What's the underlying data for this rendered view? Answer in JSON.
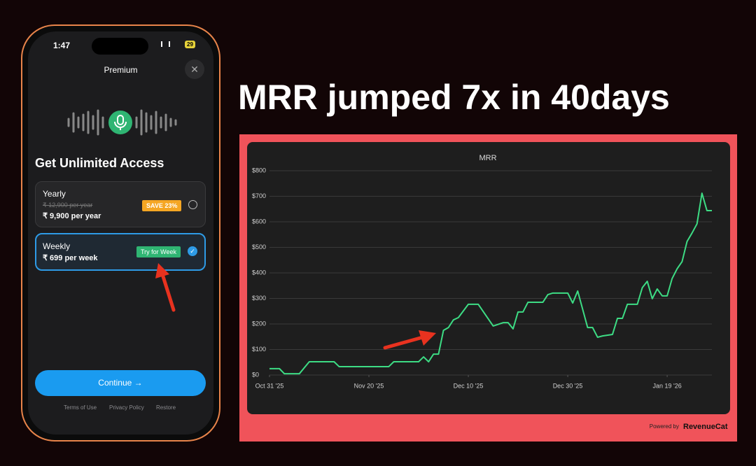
{
  "headline": "MRR jumped 7x in 40days",
  "phone": {
    "time": "1:47",
    "battery": "29",
    "title": "Premium",
    "heading": "Get Unlimited Access",
    "plans": [
      {
        "name": "Yearly",
        "old_price": "₹ 12,900 per year",
        "price": "₹ 9,900 per year",
        "badge": "SAVE 23%"
      },
      {
        "name": "Weekly",
        "price": "₹ 699 per week",
        "badge": "Try for Week"
      }
    ],
    "button": "Continue",
    "links": [
      "Terms of Use",
      "Privacy Policy",
      "Restore"
    ]
  },
  "footer": {
    "powered_by": "Powered by",
    "brand": "RevenueCat"
  },
  "chart_data": {
    "type": "line",
    "title": "MRR",
    "color": "#3ddc84",
    "grid": true,
    "x": [
      "2025-10-31",
      "2025-11-02",
      "2025-11-03",
      "2025-11-06",
      "2025-11-08",
      "2025-11-13",
      "2025-11-14",
      "2025-11-24",
      "2025-11-25",
      "2025-11-30",
      "2025-12-01",
      "2025-12-02",
      "2025-12-03",
      "2025-12-04",
      "2025-12-05",
      "2025-12-06",
      "2025-12-07",
      "2025-12-08",
      "2025-12-10",
      "2025-12-12",
      "2025-12-15",
      "2025-12-17",
      "2025-12-18",
      "2025-12-19",
      "2025-12-20",
      "2025-12-21",
      "2025-12-22",
      "2025-12-25",
      "2025-12-26",
      "2025-12-27",
      "2025-12-30",
      "2025-12-31",
      "2026-01-01",
      "2026-01-03",
      "2026-01-04",
      "2026-01-05",
      "2026-01-06",
      "2026-01-08",
      "2026-01-09",
      "2026-01-10",
      "2026-01-11",
      "2026-01-13",
      "2026-01-14",
      "2026-01-15",
      "2026-01-16",
      "2026-01-17",
      "2026-01-18",
      "2026-01-19",
      "2026-01-20",
      "2026-01-21",
      "2026-01-22",
      "2026-01-23",
      "2026-01-24",
      "2026-01-25",
      "2026-01-26",
      "2026-01-27",
      "2026-01-28"
    ],
    "values": [
      25,
      25,
      5,
      5,
      52,
      52,
      33,
      33,
      52,
      52,
      71,
      52,
      82,
      82,
      175,
      186,
      216,
      225,
      277,
      277,
      192,
      205,
      205,
      181,
      247,
      247,
      285,
      285,
      315,
      321,
      321,
      282,
      329,
      186,
      186,
      148,
      153,
      159,
      222,
      222,
      277,
      277,
      342,
      367,
      299,
      337,
      310,
      310,
      378,
      416,
      444,
      523,
      556,
      592,
      712,
      644,
      644
    ],
    "xlim": [
      "2025-10-31",
      "2026-01-28"
    ],
    "xticks": [
      {
        "value": "2025-10-31",
        "label": "Oct 31 '25"
      },
      {
        "value": "2025-11-20",
        "label": "Nov 20 '25"
      },
      {
        "value": "2025-12-10",
        "label": "Dec 10 '25"
      },
      {
        "value": "2025-12-30",
        "label": "Dec 30 '25"
      },
      {
        "value": "2026-01-19",
        "label": "Jan 19 '26"
      }
    ],
    "ylim": [
      0,
      800
    ],
    "yticks": [
      {
        "value": 0,
        "label": "$0"
      },
      {
        "value": 100,
        "label": "$100"
      },
      {
        "value": 200,
        "label": "$200"
      },
      {
        "value": 300,
        "label": "$300"
      },
      {
        "value": 400,
        "label": "$400"
      },
      {
        "value": 500,
        "label": "$500"
      },
      {
        "value": 600,
        "label": "$600"
      },
      {
        "value": 700,
        "label": "$700"
      },
      {
        "value": 800,
        "label": "$800"
      }
    ]
  }
}
